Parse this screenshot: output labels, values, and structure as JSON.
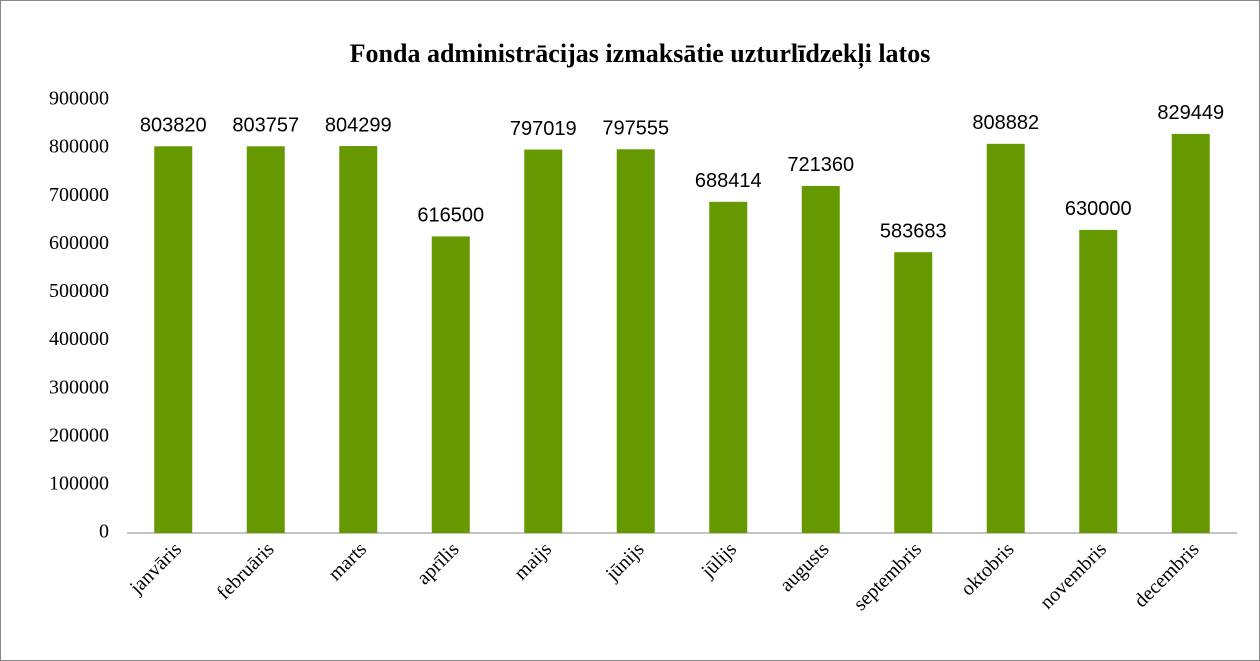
{
  "chart_data": {
    "type": "bar",
    "title": "Fonda administrācijas izmaksātie uzturlīdzekļi latos",
    "categories": [
      "janvāris",
      "februāris",
      "marts",
      "aprīlis",
      "maijs",
      "jūnijs",
      "jūlijs",
      "augusts",
      "septembris",
      "oktobris",
      "novembris",
      "decembris"
    ],
    "values": [
      803820,
      803757,
      804299,
      616500,
      797019,
      797555,
      688414,
      721360,
      583683,
      808882,
      630000,
      829449
    ],
    "color": "#669900",
    "ylim": [
      0,
      900000
    ],
    "yticks": [
      0,
      100000,
      200000,
      300000,
      400000,
      500000,
      600000,
      700000,
      800000,
      900000
    ],
    "grid": false
  }
}
